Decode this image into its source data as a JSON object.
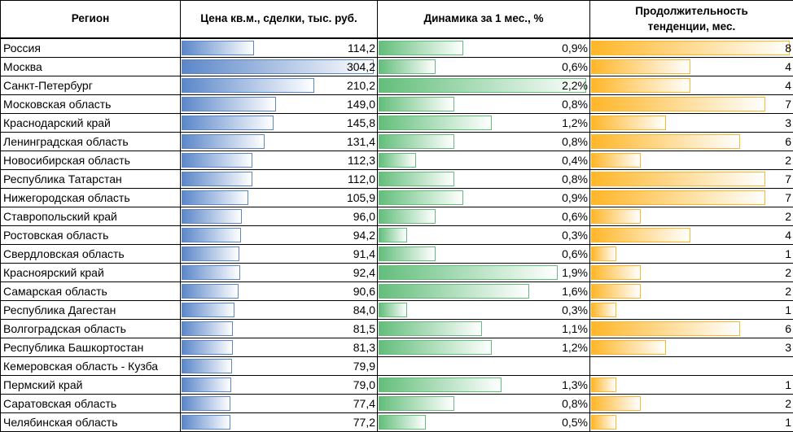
{
  "headers": {
    "region": "Регион",
    "price": "Цена кв.м., сделки, тыс. руб.",
    "dynamics": "Динамика за 1 мес., %",
    "duration_line1": "Продолжительность",
    "duration_line2": "тенденции, мес."
  },
  "scales": {
    "price_max": 304.2,
    "dynamics_max": 2.2,
    "duration_max": 8
  },
  "colors": {
    "price_bar": "#5b87c9",
    "dynamics_bar": "#63be7b",
    "duration_bar": "#ffb628"
  },
  "rows": [
    {
      "region": "Россия",
      "price": 114.2,
      "price_text": "114,2",
      "dyn": 0.9,
      "dyn_text": "0,9%",
      "dur": 8,
      "dur_text": "8"
    },
    {
      "region": "Москва",
      "price": 304.2,
      "price_text": "304,2",
      "dyn": 0.6,
      "dyn_text": "0,6%",
      "dur": 4,
      "dur_text": "4"
    },
    {
      "region": "Санкт-Петербург",
      "price": 210.2,
      "price_text": "210,2",
      "dyn": 2.2,
      "dyn_text": "2,2%",
      "dur": 4,
      "dur_text": "4"
    },
    {
      "region": "Московская область",
      "price": 149.0,
      "price_text": "149,0",
      "dyn": 0.8,
      "dyn_text": "0,8%",
      "dur": 7,
      "dur_text": "7"
    },
    {
      "region": "Краснодарский край",
      "price": 145.8,
      "price_text": "145,8",
      "dyn": 1.2,
      "dyn_text": "1,2%",
      "dur": 3,
      "dur_text": "3"
    },
    {
      "region": "Ленинградская область",
      "price": 131.4,
      "price_text": "131,4",
      "dyn": 0.8,
      "dyn_text": "0,8%",
      "dur": 6,
      "dur_text": "6"
    },
    {
      "region": "Новосибирская область",
      "price": 112.3,
      "price_text": "112,3",
      "dyn": 0.4,
      "dyn_text": "0,4%",
      "dur": 2,
      "dur_text": "2"
    },
    {
      "region": "Республика Татарстан",
      "price": 112.0,
      "price_text": "112,0",
      "dyn": 0.8,
      "dyn_text": "0,8%",
      "dur": 7,
      "dur_text": "7"
    },
    {
      "region": "Нижегородская область",
      "price": 105.9,
      "price_text": "105,9",
      "dyn": 0.9,
      "dyn_text": "0,9%",
      "dur": 7,
      "dur_text": "7"
    },
    {
      "region": "Ставропольский край",
      "price": 96.0,
      "price_text": "96,0",
      "dyn": 0.6,
      "dyn_text": "0,6%",
      "dur": 2,
      "dur_text": "2"
    },
    {
      "region": "Ростовская область",
      "price": 94.2,
      "price_text": "94,2",
      "dyn": 0.3,
      "dyn_text": "0,3%",
      "dur": 4,
      "dur_text": "4"
    },
    {
      "region": "Свердловская область",
      "price": 91.4,
      "price_text": "91,4",
      "dyn": 0.6,
      "dyn_text": "0,6%",
      "dur": 1,
      "dur_text": "1"
    },
    {
      "region": "Красноярский край",
      "price": 92.4,
      "price_text": "92,4",
      "dyn": 1.9,
      "dyn_text": "1,9%",
      "dur": 2,
      "dur_text": "2"
    },
    {
      "region": "Самарская область",
      "price": 90.6,
      "price_text": "90,6",
      "dyn": 1.6,
      "dyn_text": "1,6%",
      "dur": 2,
      "dur_text": "2"
    },
    {
      "region": "Республика Дагестан",
      "price": 84.0,
      "price_text": "84,0",
      "dyn": 0.3,
      "dyn_text": "0,3%",
      "dur": 1,
      "dur_text": "1"
    },
    {
      "region": "Волгоградская область",
      "price": 81.5,
      "price_text": "81,5",
      "dyn": 1.1,
      "dyn_text": "1,1%",
      "dur": 6,
      "dur_text": "6"
    },
    {
      "region": "Республика Башкортостан",
      "price": 81.3,
      "price_text": "81,3",
      "dyn": 1.2,
      "dyn_text": "1,2%",
      "dur": 3,
      "dur_text": "3"
    },
    {
      "region": "Кемеровская область - Кузба",
      "price": 79.9,
      "price_text": "79,9",
      "dyn": null,
      "dyn_text": "",
      "dur": null,
      "dur_text": ""
    },
    {
      "region": "Пермский край",
      "price": 79.0,
      "price_text": "79,0",
      "dyn": 1.3,
      "dyn_text": "1,3%",
      "dur": 1,
      "dur_text": "1"
    },
    {
      "region": "Саратовская область",
      "price": 77.4,
      "price_text": "77,4",
      "dyn": 0.8,
      "dyn_text": "0,8%",
      "dur": 2,
      "dur_text": "2"
    },
    {
      "region": "Челябинская область",
      "price": 77.2,
      "price_text": "77,2",
      "dyn": 0.5,
      "dyn_text": "0,5%",
      "dur": 1,
      "dur_text": "1"
    }
  ]
}
